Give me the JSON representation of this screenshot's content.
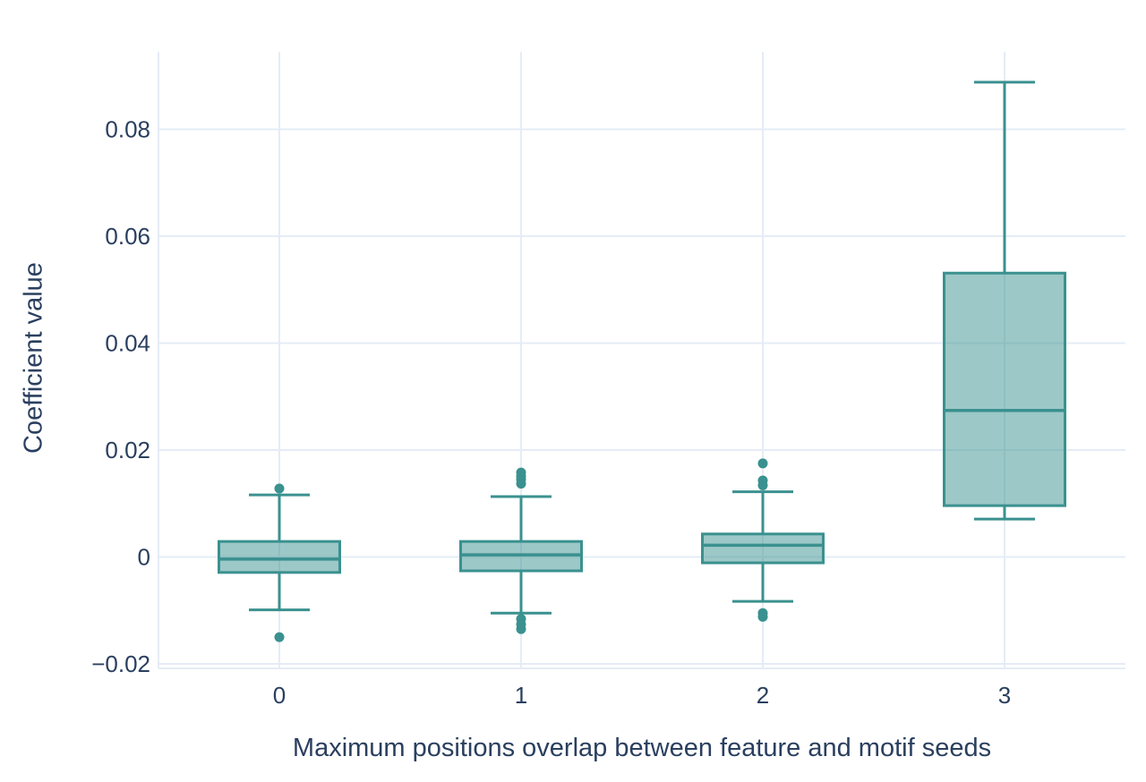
{
  "figure": {
    "background": "#ffffff"
  },
  "chart_data": {
    "type": "box",
    "title": "",
    "xlabel": "Maximum positions overlap between feature and motif seeds",
    "ylabel": "Coefficient value",
    "categories": [
      "0",
      "1",
      "2",
      "3"
    ],
    "ylim": [
      -0.02084,
      0.09448
    ],
    "grid": true,
    "legend": false,
    "y_ticks": [
      {
        "value": 0.08,
        "label": "0.08"
      },
      {
        "value": 0.06,
        "label": "0.06"
      },
      {
        "value": 0.04,
        "label": "0.04"
      },
      {
        "value": 0.02,
        "label": "0.02"
      },
      {
        "value": 0,
        "label": "0"
      },
      {
        "value": -0.02,
        "label": "−0.02"
      }
    ],
    "series": [
      {
        "category": "0",
        "whisker_low": -0.0099,
        "q1": -0.0029,
        "median": -0.0004,
        "q3": 0.0029,
        "whisker_high": 0.0116,
        "outliers": [
          0.0128,
          -0.015
        ]
      },
      {
        "category": "1",
        "whisker_low": -0.0105,
        "q1": -0.0026,
        "median": 0.0004,
        "q3": 0.0029,
        "whisker_high": 0.0113,
        "outliers": [
          0.0158,
          0.0151,
          0.0145,
          0.0137,
          -0.0116,
          -0.0126,
          -0.0135
        ]
      },
      {
        "category": "2",
        "whisker_low": -0.0083,
        "q1": -0.0011,
        "median": 0.0022,
        "q3": 0.0043,
        "whisker_high": 0.0122,
        "outliers": [
          0.0175,
          0.0143,
          0.0134,
          -0.0105,
          -0.0112
        ]
      },
      {
        "category": "3",
        "whisker_low": 0.0071,
        "q1": 0.0096,
        "median": 0.0274,
        "q3": 0.0531,
        "whisker_high": 0.0888,
        "outliers": []
      }
    ],
    "colors": {
      "box_line": "#3a918f",
      "box_fill": "rgba(58,145,143,0.5)",
      "gridline": "#e5ecf6",
      "axis_text": "#2a3f5f",
      "background": "#ffffff"
    }
  }
}
